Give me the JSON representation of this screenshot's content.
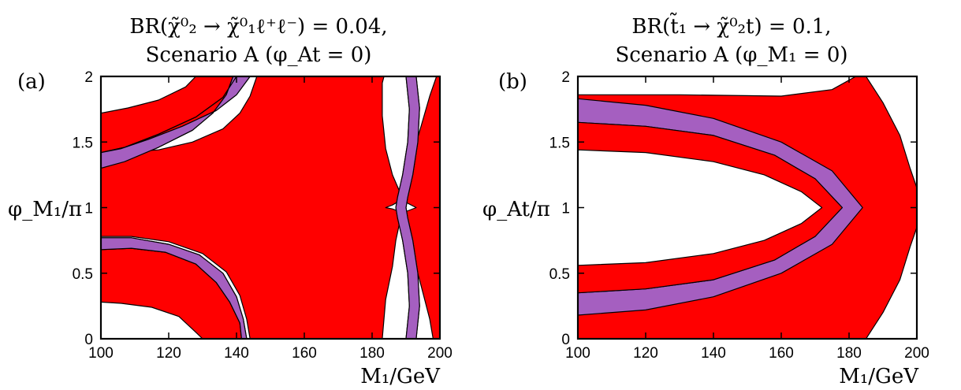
{
  "colors": {
    "red": "#ff0000",
    "purple": "#a55fc0",
    "white": "#ffffff"
  },
  "chart_data": [
    {
      "type": "contour",
      "panel_label": "(a)",
      "title_line1": "BR(χ̃⁰₂ → χ̃⁰₁ℓ⁺ℓ⁻) = 0.04,",
      "title_line2": "Scenario A (φ_At = 0)",
      "xlabel": "M₁/GeV",
      "ylabel": "φ_M₁/π",
      "xlim": [
        100,
        200
      ],
      "ylim": [
        0,
        2
      ],
      "xticks": [
        100,
        120,
        140,
        160,
        180,
        200
      ],
      "yticks": [
        0,
        0.5,
        1,
        1.5,
        2
      ],
      "ytick_labels": [
        "0",
        "0.5",
        "1",
        "1.5",
        "2"
      ],
      "regions": [
        {
          "color": "red",
          "points": [
            [
              100,
              0.68
            ],
            [
              109,
              0.69
            ],
            [
              119,
              0.66
            ],
            [
              128,
              0.57
            ],
            [
              134,
              0.43
            ],
            [
              138,
              0.28
            ],
            [
              141,
              0.12
            ],
            [
              141.5,
              0
            ],
            [
              130,
              0
            ],
            [
              128,
              0.05
            ],
            [
              123,
              0.17
            ],
            [
              115,
              0.24
            ],
            [
              106,
              0.27
            ],
            [
              100,
              0.28
            ]
          ]
        },
        {
          "color": "red",
          "points": [
            [
              100,
              1.3
            ],
            [
              107,
              1.35
            ],
            [
              117,
              1.46
            ],
            [
              127,
              1.59
            ],
            [
              133,
              1.72
            ],
            [
              137,
              1.86
            ],
            [
              139,
              2
            ],
            [
              128,
              2
            ],
            [
              125,
              1.92
            ],
            [
              117,
              1.82
            ],
            [
              108,
              1.76
            ],
            [
              100,
              1.72
            ]
          ]
        },
        {
          "color": "purple",
          "points": [
            [
              100,
              1.42
            ],
            [
              107,
              1.46
            ],
            [
              117,
              1.56
            ],
            [
              128,
              1.69
            ],
            [
              136,
              1.84
            ],
            [
              140,
              2
            ],
            [
              144,
              2
            ],
            [
              140,
              1.86
            ],
            [
              134,
              1.74
            ],
            [
              124,
              1.62
            ],
            [
              114,
              1.52
            ],
            [
              106,
              1.45
            ],
            [
              100,
              1.42
            ],
            [
              100,
              1.3
            ],
            [
              107,
              1.35
            ],
            [
              117,
              1.46
            ],
            [
              127,
              1.59
            ],
            [
              133,
              1.72
            ],
            [
              137,
              1.86
            ],
            [
              139,
              2
            ],
            [
              140,
              2
            ],
            [
              136,
              1.84
            ],
            [
              128,
              1.69
            ],
            [
              117,
              1.56
            ],
            [
              107,
              1.46
            ],
            [
              100,
              1.42
            ]
          ]
        },
        {
          "color": "purple",
          "points": [
            [
              100,
              0.77
            ],
            [
              109,
              0.77
            ],
            [
              120,
              0.72
            ],
            [
              129,
              0.64
            ],
            [
              136,
              0.5
            ],
            [
              140,
              0.32
            ],
            [
              142,
              0.15
            ],
            [
              143,
              0
            ],
            [
              141.5,
              0
            ],
            [
              141,
              0.12
            ],
            [
              138,
              0.28
            ],
            [
              134,
              0.43
            ],
            [
              128,
              0.57
            ],
            [
              119,
              0.66
            ],
            [
              109,
              0.69
            ],
            [
              100,
              0.68
            ]
          ]
        },
        {
          "color": "red",
          "points": [
            [
              100,
              0.78
            ],
            [
              109,
              0.78
            ],
            [
              120,
              0.74
            ],
            [
              130,
              0.65
            ],
            [
              137,
              0.51
            ],
            [
              141,
              0.33
            ],
            [
              143,
              0.15
            ],
            [
              144,
              0
            ],
            [
              183,
              0
            ],
            [
              184,
              0.3
            ],
            [
              186,
              0.55
            ],
            [
              187,
              0.75
            ],
            [
              188,
              0.87
            ],
            [
              189.5,
              0.94
            ],
            [
              188,
              0.97
            ],
            [
              186,
              0.99
            ],
            [
              184,
              1.0
            ],
            [
              186,
              1.02
            ],
            [
              188,
              1.05
            ],
            [
              189.5,
              1.07
            ],
            [
              188,
              1.13
            ],
            [
              186,
              1.25
            ],
            [
              184,
              1.45
            ],
            [
              183,
              1.7
            ],
            [
              183,
              1.95
            ],
            [
              183.5,
              2
            ],
            [
              200,
              2
            ],
            [
              200,
              0
            ],
            [
              198,
              0
            ],
            [
              197,
              0.15
            ],
            [
              194,
              0.45
            ],
            [
              191,
              0.72
            ],
            [
              189,
              0.93
            ],
            [
              190,
              0.97
            ],
            [
              193,
              1.0
            ],
            [
              190,
              1.04
            ],
            [
              189,
              1.1
            ],
            [
              191,
              1.3
            ],
            [
              194,
              1.58
            ],
            [
              197,
              1.85
            ],
            [
              199,
              2
            ],
            [
              146,
              2
            ],
            [
              144,
              1.85
            ],
            [
              141,
              1.72
            ],
            [
              136,
              1.6
            ],
            [
              127,
              1.5
            ],
            [
              117,
              1.44
            ],
            [
              106,
              1.42
            ],
            [
              100,
              1.41
            ],
            [
              100,
              1.31
            ],
            [
              100,
              0.78
            ]
          ]
        },
        {
          "color": "purple",
          "points": [
            [
              190,
              0
            ],
            [
              191,
              0.25
            ],
            [
              190.5,
              0.5
            ],
            [
              189,
              0.75
            ],
            [
              187.5,
              0.92
            ],
            [
              187,
              1.0
            ],
            [
              187.5,
              1.08
            ],
            [
              189,
              1.25
            ],
            [
              190.5,
              1.5
            ],
            [
              191,
              1.75
            ],
            [
              190,
              2
            ],
            [
              193,
              2
            ],
            [
              194,
              1.76
            ],
            [
              193.5,
              1.5
            ],
            [
              192,
              1.25
            ],
            [
              190.5,
              1.08
            ],
            [
              190,
              1.0
            ],
            [
              190.5,
              0.92
            ],
            [
              192,
              0.75
            ],
            [
              193.5,
              0.5
            ],
            [
              194,
              0.25
            ],
            [
              193,
              0
            ]
          ]
        }
      ],
      "white_regions": [
        {
          "points": [
            [
              100,
              0
            ],
            [
              130,
              0
            ],
            [
              128,
              0.05
            ],
            [
              123,
              0.17
            ],
            [
              115,
              0.24
            ],
            [
              106,
              0.27
            ],
            [
              100,
              0.28
            ]
          ]
        },
        {
          "points": [
            [
              100,
              1.72
            ],
            [
              108,
              1.76
            ],
            [
              117,
              1.82
            ],
            [
              125,
              1.92
            ],
            [
              128,
              2
            ],
            [
              100,
              2
            ]
          ]
        },
        {
          "points": [
            [
              146,
              2
            ],
            [
              148,
              1.8
            ],
            [
              152,
              1.62
            ],
            [
              160,
              1.35
            ],
            [
              168,
              1.18
            ],
            [
              173,
              1.06
            ],
            [
              176,
              1.01
            ],
            [
              177,
              1.0
            ],
            [
              176,
              0.99
            ],
            [
              173,
              0.94
            ],
            [
              168,
              0.82
            ],
            [
              160,
              0.65
            ],
            [
              152,
              0.38
            ],
            [
              147,
              0.15
            ],
            [
              146,
              0
            ],
            [
              183,
              0
            ],
            [
              184,
              0.3
            ],
            [
              186,
              0.55
            ],
            [
              187,
              0.75
            ],
            [
              188,
              0.87
            ],
            [
              189.5,
              0.94
            ],
            [
              188,
              0.97
            ],
            [
              186,
              0.99
            ],
            [
              184,
              1.0
            ],
            [
              186,
              1.02
            ],
            [
              188,
              1.05
            ],
            [
              189.5,
              1.07
            ],
            [
              188,
              1.13
            ],
            [
              186,
              1.25
            ],
            [
              184,
              1.45
            ],
            [
              183,
              1.7
            ],
            [
              183,
              1.95
            ],
            [
              183.5,
              2
            ]
          ]
        },
        {
          "points": [
            [
              199,
              0
            ],
            [
              200,
              0
            ],
            [
              200,
              0.1
            ]
          ]
        },
        {
          "points": [
            [
              199.5,
              2
            ],
            [
              200,
              2
            ],
            [
              200,
              1.9
            ]
          ]
        }
      ]
    },
    {
      "type": "contour",
      "panel_label": "(b)",
      "title_line1": "BR(t̃₁ → χ̃⁰₂t) = 0.1,",
      "title_line2": "Scenario A (φ_M₁ = 0)",
      "xlabel": "M₁/GeV",
      "ylabel": "φ_At/π",
      "xlim": [
        100,
        200
      ],
      "ylim": [
        0,
        2
      ],
      "xticks": [
        100,
        120,
        140,
        160,
        180,
        200
      ],
      "yticks": [
        0,
        0.5,
        1,
        1.5,
        2
      ],
      "ytick_labels": [
        "0",
        "0.5",
        "1",
        "1.5",
        "2"
      ],
      "red_outer_right": [
        [
          185,
          2
        ],
        [
          190,
          1.8
        ],
        [
          195,
          1.55
        ],
        [
          198,
          1.3
        ],
        [
          200,
          1.15
        ],
        [
          200,
          0.85
        ],
        [
          198,
          0.7
        ],
        [
          195,
          0.45
        ],
        [
          190,
          0.2
        ],
        [
          185,
          0
        ]
      ],
      "white_inner": [
        [
          100,
          1.44
        ],
        [
          120,
          1.42
        ],
        [
          140,
          1.35
        ],
        [
          155,
          1.25
        ],
        [
          166,
          1.12
        ],
        [
          172,
          1.0
        ],
        [
          166,
          0.88
        ],
        [
          155,
          0.75
        ],
        [
          140,
          0.65
        ],
        [
          120,
          0.58
        ],
        [
          100,
          0.56
        ]
      ],
      "purple_band_outer": [
        [
          100,
          1.83
        ],
        [
          120,
          1.78
        ],
        [
          140,
          1.68
        ],
        [
          160,
          1.5
        ],
        [
          175,
          1.28
        ],
        [
          184,
          1.0
        ],
        [
          175,
          0.72
        ],
        [
          160,
          0.5
        ],
        [
          140,
          0.32
        ],
        [
          120,
          0.22
        ],
        [
          100,
          0.18
        ]
      ],
      "purple_band_inner": [
        [
          100,
          1.65
        ],
        [
          120,
          1.62
        ],
        [
          140,
          1.55
        ],
        [
          158,
          1.4
        ],
        [
          170,
          1.22
        ],
        [
          178,
          1.0
        ],
        [
          170,
          0.78
        ],
        [
          158,
          0.6
        ],
        [
          140,
          0.45
        ],
        [
          120,
          0.38
        ],
        [
          100,
          0.35
        ]
      ],
      "white_top_left": [
        [
          100,
          2
        ],
        [
          100,
          1.86
        ],
        [
          130,
          1.86
        ],
        [
          160,
          1.85
        ],
        [
          175,
          1.9
        ],
        [
          182,
          2
        ]
      ],
      "white_top_left_corner": [
        [
          100,
          2
        ],
        [
          100,
          1.86
        ]
      ]
    }
  ]
}
